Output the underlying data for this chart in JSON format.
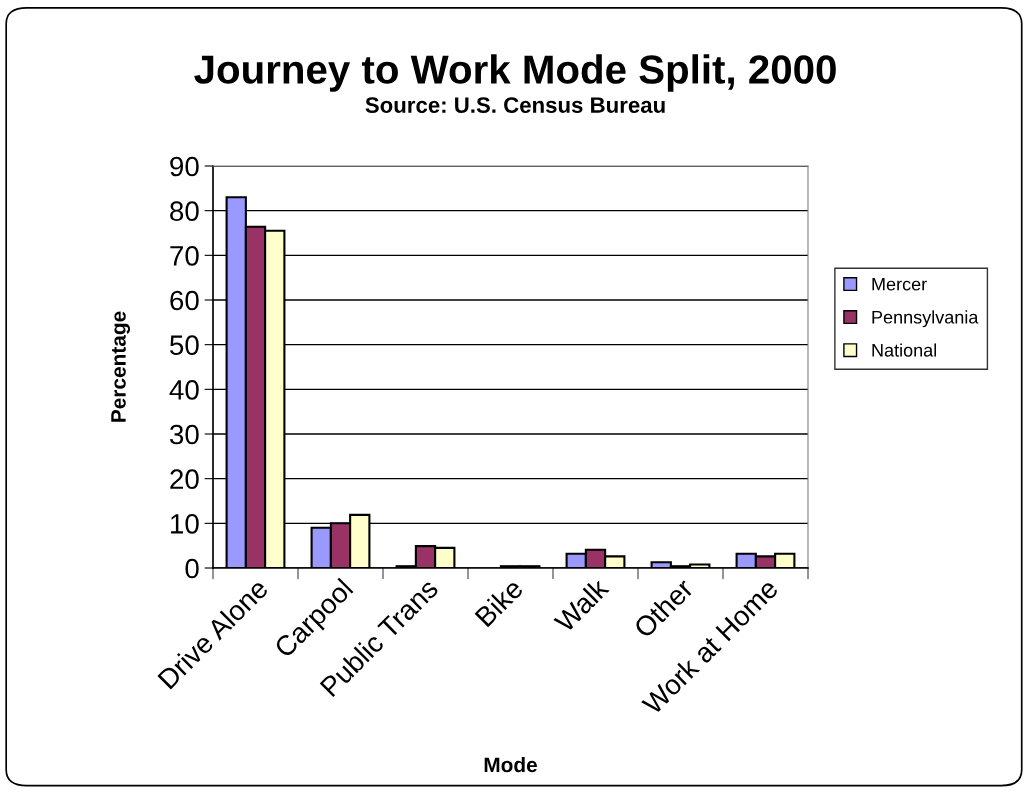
{
  "chart_data": {
    "type": "bar",
    "title": "Journey to Work Mode Split, 2000",
    "subtitle": "Source: U.S. Census Bureau",
    "xlabel": "Mode",
    "ylabel": "Percentage",
    "categories": [
      "Drive Alone",
      "Carpool",
      "Public Trans",
      "Bike",
      "Walk",
      "Other",
      "Work at Home"
    ],
    "series": [
      {
        "name": "Mercer",
        "color": "#9999ff",
        "values": [
          83,
          9.0,
          0.4,
          null,
          3.2,
          1.3,
          3.2
        ]
      },
      {
        "name": "Pennsylvania",
        "color": "#993366",
        "values": [
          76.4,
          10.0,
          4.9,
          0.4,
          4.1,
          0.4,
          2.6
        ]
      },
      {
        "name": "National",
        "color": "#ffffcc",
        "values": [
          75.5,
          11.9,
          4.5,
          0.4,
          2.6,
          0.8,
          3.2
        ]
      }
    ],
    "ylim": [
      0,
      90
    ],
    "yticks": [
      0,
      10,
      20,
      30,
      40,
      50,
      60,
      70,
      80,
      90
    ],
    "grid": "y",
    "legend": "right"
  }
}
